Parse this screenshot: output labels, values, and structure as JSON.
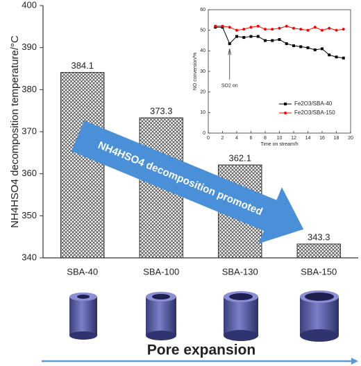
{
  "chart_data": [
    {
      "type": "bar",
      "ylabel": "NH4HSO4 decomposition temperature/°C",
      "categories": [
        "SBA-40",
        "SBA-100",
        "SBA-130",
        "SBA-150"
      ],
      "values": [
        384.1,
        373.3,
        362.1,
        343.3
      ],
      "ylim": [
        340,
        400
      ],
      "yticks": [
        340,
        350,
        360,
        370,
        380,
        390,
        400
      ],
      "annotations": [
        "NH4HSO4 decomposition promoted",
        "Pore expansion"
      ],
      "color": "#333333"
    },
    {
      "type": "line",
      "xlabel": "Time on stream/h",
      "ylabel": "NO conversion/%",
      "annotations": [
        "SO2 on"
      ],
      "x": [
        1,
        2,
        3,
        4,
        5,
        6,
        7,
        8,
        9,
        10,
        11,
        12,
        13,
        14,
        15,
        16,
        17,
        18,
        19
      ],
      "series": [
        {
          "name": "Fe2O3/SBA-40",
          "color": "#000000",
          "marker": "square",
          "values": [
            51.5,
            51.5,
            43.5,
            47,
            46.5,
            47,
            47,
            45,
            45,
            45.5,
            43.5,
            42.5,
            42,
            41.5,
            40.5,
            41,
            38,
            37,
            36.5
          ]
        },
        {
          "name": "Fe2O3/SBA-150",
          "color": "#ff0000",
          "marker": "circle",
          "values": [
            52,
            52,
            51.5,
            50,
            50.5,
            51.5,
            52,
            50.5,
            50.5,
            51,
            52,
            51,
            50.5,
            50,
            51.5,
            50,
            51,
            50,
            50.5
          ]
        }
      ],
      "xlim": [
        0,
        20
      ],
      "xticks": [
        0,
        2,
        4,
        6,
        8,
        10,
        12,
        14,
        16,
        18,
        20
      ],
      "ylim": [
        0,
        60
      ],
      "yticks": [
        0,
        10,
        20,
        30,
        40,
        50,
        60
      ]
    }
  ]
}
